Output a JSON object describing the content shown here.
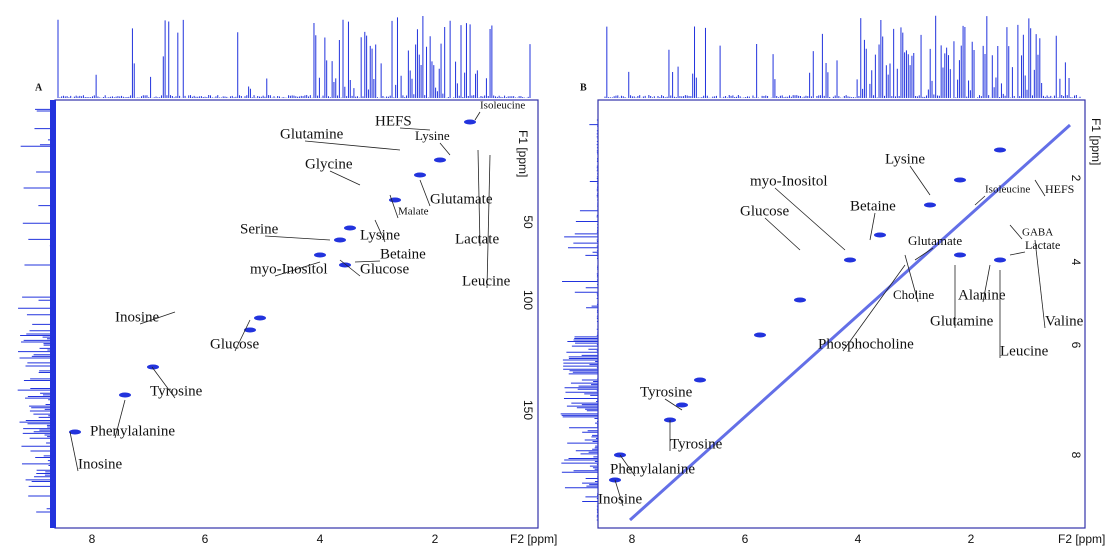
{
  "panels": [
    {
      "label": "A",
      "x_axis_label": "F2 [ppm]",
      "y_axis_label": "F1 [ppm]",
      "xticks": [
        "8",
        "6",
        "4",
        "2"
      ],
      "yticks": [
        "50",
        "100",
        "150"
      ],
      "annotations": [
        "HEFS",
        "Isoleucine",
        "Glutamine",
        "Lysine",
        "Glycine",
        "Glutamate",
        "Malate",
        "Serine",
        "Lysine",
        "Lactate",
        "Betaine",
        "Leucine",
        "myo-Inositol",
        "Glucose",
        "Inosine",
        "Glucose",
        "Tyrosine",
        "Phenylalanine",
        "Inosine"
      ]
    },
    {
      "label": "B",
      "x_axis_label": "F2 [ppm]",
      "y_axis_label": "F1 [ppm]",
      "xticks": [
        "8",
        "6",
        "4",
        "2"
      ],
      "yticks": [
        "2",
        "4",
        "6",
        "8"
      ],
      "annotations": [
        "Lysine",
        "myo-Inositol",
        "Betaine",
        "Glucose",
        "Isoleucine",
        "HEFS",
        "GABA",
        "Lactate",
        "Glutamate",
        "Choline",
        "Alanine",
        "Glutamine",
        "Valine",
        "Phosphocholine",
        "Leucine",
        "Tyrosine",
        "Tyrosine",
        "Phenylalanine",
        "Inosine"
      ]
    }
  ]
}
